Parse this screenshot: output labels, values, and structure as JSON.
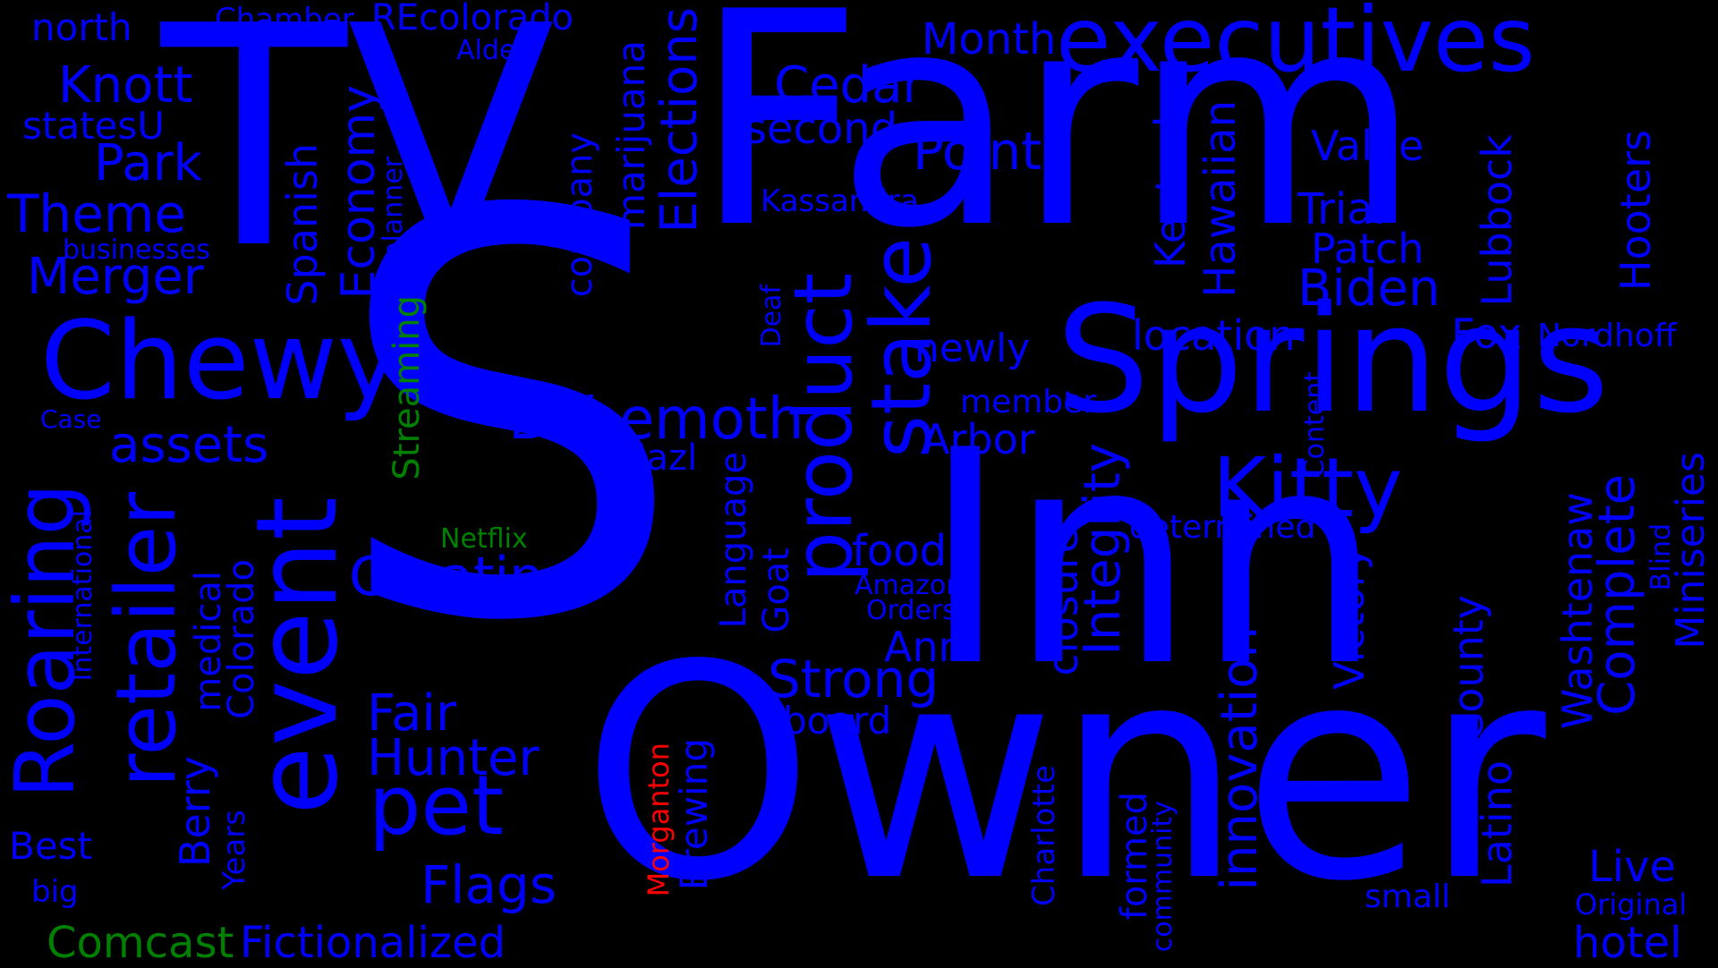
{
  "colors": {
    "background": "#000000",
    "primary": "#0000ff",
    "secondary": "#008000",
    "accent": "#ff0000"
  },
  "words": {
    "S": "S",
    "Owner": "Owner",
    "Inn": "Inn",
    "Farm": "Farm",
    "TV": "TV",
    "Springs": "Springs",
    "executives": "executives",
    "Chewy": "Chewy",
    "event": "event",
    "retailer": "retailer",
    "Roaring": "Roaring",
    "product": "product",
    "stake": "stake",
    "Kitty": "Kitty",
    "pet": "pet",
    "Behemoth": "Behemoth",
    "Creating": "Creating",
    "Hunter": "Hunter",
    "Fair": "Fair",
    "Flags": "Flags",
    "Fictionalized": "Fictionalized",
    "Comcast": "Comcast",
    "Knott": "Knott",
    "Park": "Park",
    "Theme": "Theme",
    "Merger": "Merger",
    "assets": "assets",
    "statesU": "statesU",
    "north": "north",
    "Chamber": "Chamber",
    "REcolorado": "REcolorado",
    "Alder": "Alder",
    "businesses": "businesses",
    "Case": "Case",
    "Best": "Best",
    "big": "big",
    "Economy": "Economy",
    "Spanish": "Spanish",
    "planner": "planner",
    "Streaming": "Streaming",
    "Netflix": "Netflix",
    "Berry": "Berry",
    "medical": "medical",
    "Colorado": "Colorado",
    "Years": "Years",
    "International": "International",
    "Elections": "Elections",
    "marijuana": "marijuana",
    "company": "company",
    "Month": "Month",
    "Cedar": "Cedar",
    "second": "second",
    "Point": "Point",
    "Kassandra": "Kassandra",
    "Deaf": "Deaf",
    "newly": "newly",
    "member": "member",
    "Arbor": "Arbor",
    "Mazl": "Mazl",
    "Language": "Language",
    "Goat": "Goat",
    "food": "food",
    "Amazon": "Amazon",
    "Orders": "Orders",
    "Ann": "Ann",
    "Strong": "Strong",
    "board": "board",
    "Morganton": "Morganton",
    "Brewing": "Brewing",
    "Charlotte": "Charlotte",
    "formed": "formed",
    "community": "community",
    "innovation": "innovation",
    "closure": "closure",
    "Integrity": "Integrity",
    "Kentucky": "Kentucky",
    "Hawaiian": "Hawaiian",
    "location": "location",
    "Value": "Value",
    "Trial": "Trial",
    "Patch": "Patch",
    "Biden": "Biden",
    "Lubbock": "Lubbock",
    "Hooters": "Hooters",
    "Fox": "Fox",
    "Nordhoff": "Nordhoff",
    "Content": "Content",
    "determined": "determined",
    "Victory": "Victory",
    "County": "County",
    "Latino": "Latino",
    "Washtenaw": "Washtenaw",
    "Complete": "Complete",
    "Blind": "Blind",
    "Miniseries": "Miniseries",
    "Live": "Live",
    "Original": "Original",
    "small": "small",
    "hotel": "hotel"
  }
}
